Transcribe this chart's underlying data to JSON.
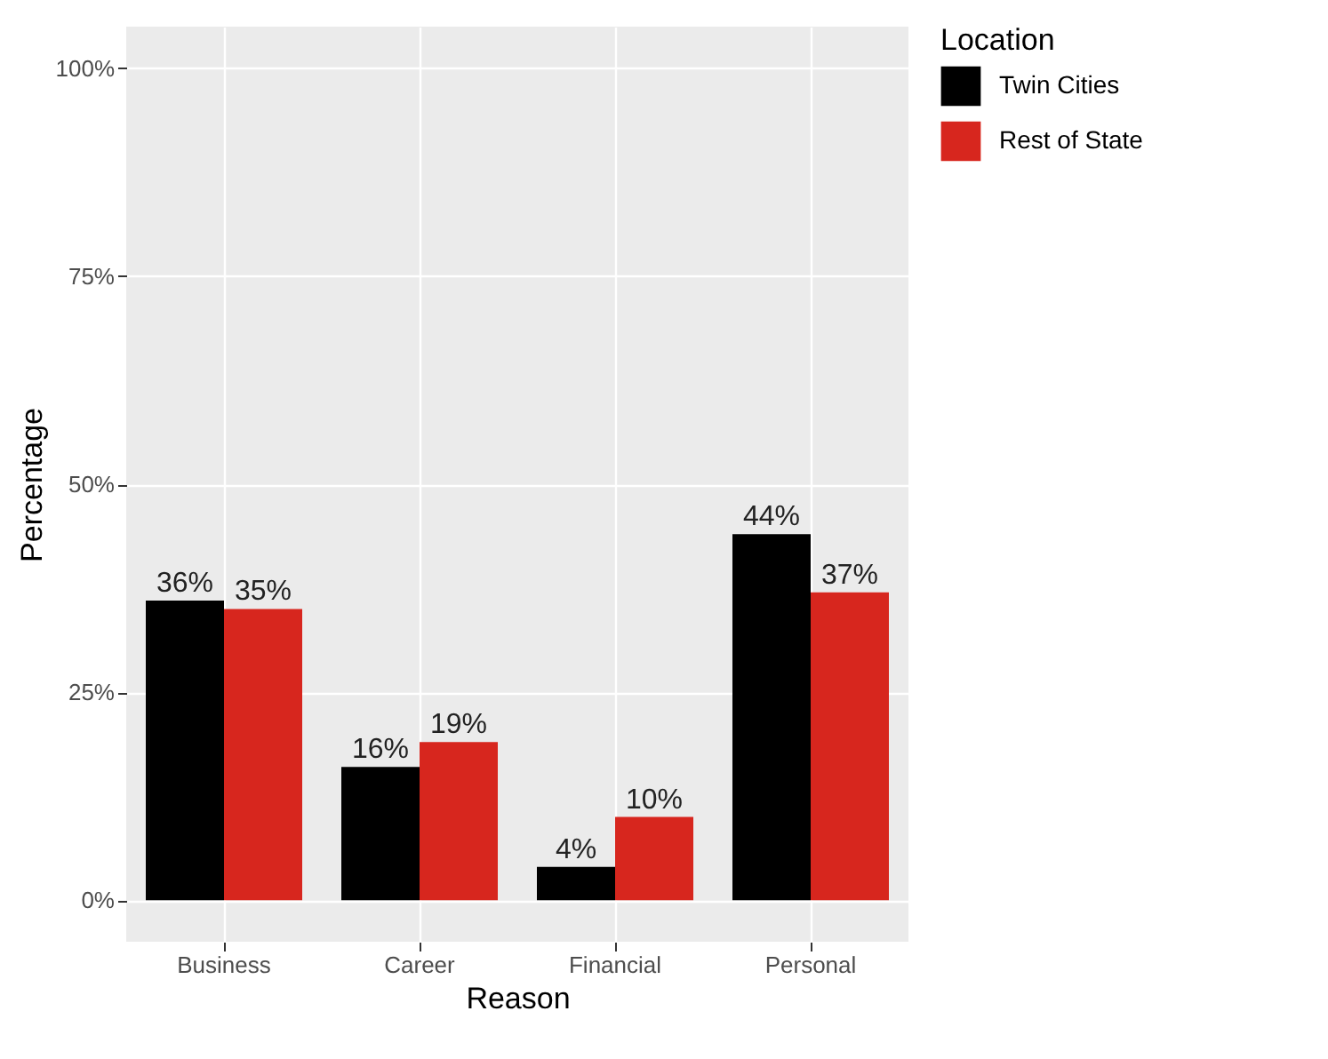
{
  "chart_data": {
    "type": "bar",
    "xlabel": "Reason",
    "ylabel": "Percentage",
    "legend_title": "Location",
    "categories": [
      "Business",
      "Career",
      "Financial",
      "Personal"
    ],
    "series": [
      {
        "name": "Twin Cities",
        "color": "#000000",
        "values": [
          36,
          16,
          4,
          44
        ],
        "value_labels": [
          "36%",
          "16%",
          "4%",
          "44%"
        ]
      },
      {
        "name": "Rest of State",
        "color": "#d7261e",
        "values": [
          35,
          19,
          10,
          37
        ],
        "value_labels": [
          "35%",
          "19%",
          "10%",
          "37%"
        ]
      }
    ],
    "ylim": [
      -5,
      105
    ],
    "yticks": [
      {
        "value": 0,
        "label": "0%"
      },
      {
        "value": 25,
        "label": "25%"
      },
      {
        "value": 50,
        "label": "50%"
      },
      {
        "value": 75,
        "label": "75%"
      },
      {
        "value": 100,
        "label": "100%"
      }
    ],
    "grid": true,
    "legend": "right"
  }
}
